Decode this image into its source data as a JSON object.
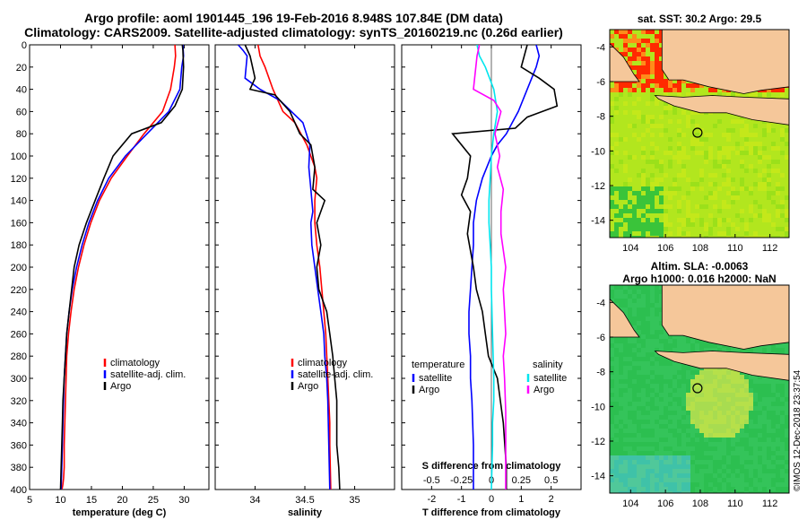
{
  "title": {
    "line1": "Argo profile: aoml 1901445_196 19-Feb-2016 8.948S 107.84E (DM data)",
    "line2": "Climatology: CARS2009. Satellite-adjusted climatology: synTS_20160219.nc (0.26d earlier)"
  },
  "colors": {
    "climatology": "#ff0000",
    "satellite": "#0000ff",
    "argo": "#000000",
    "sat_salinity": "#00e5ee",
    "clim_salinity": "#ff00ff",
    "land": "#f5c79a"
  },
  "chart_data": [
    {
      "type": "line",
      "id": "temperature",
      "xlabel": "temperature (deg C)",
      "xlim": [
        5,
        34
      ],
      "xticks": [
        5,
        10,
        15,
        20,
        25,
        30
      ],
      "ylim": [
        400,
        0
      ],
      "yticks": [
        0,
        20,
        40,
        60,
        80,
        100,
        120,
        140,
        160,
        180,
        200,
        220,
        240,
        260,
        280,
        300,
        320,
        340,
        360,
        380,
        400
      ],
      "legend": [
        "climatology",
        "satellite-adj. clim.",
        "Argo"
      ],
      "series": [
        {
          "name": "climatology",
          "color": "#ff0000",
          "x": [
            28.5,
            28.6,
            28.4,
            27.8,
            26.5,
            23.5,
            20.8,
            18.2,
            16.3,
            14.9,
            13.8,
            12.9,
            12.2,
            11.7,
            11.3,
            11.0,
            10.9,
            10.8,
            10.7,
            10.6,
            10.6,
            10.5,
            10.4,
            10.3,
            10.2,
            10.1
          ],
          "depth": [
            0,
            10,
            20,
            40,
            60,
            80,
            100,
            120,
            140,
            160,
            180,
            200,
            220,
            240,
            260,
            280,
            300,
            320,
            340,
            360,
            380,
            390,
            395,
            398,
            400,
            402
          ]
        },
        {
          "name": "satellite-adj. clim.",
          "color": "#0000ff",
          "x": [
            29.8,
            29.9,
            29.6,
            29.3,
            27.5,
            24.0,
            20.5,
            17.8,
            16.0,
            14.6,
            13.5,
            12.6,
            11.9,
            11.4,
            11.0,
            10.8,
            10.6,
            10.5,
            10.4,
            10.3,
            10.2,
            10.1
          ],
          "depth": [
            0,
            10,
            20,
            40,
            60,
            80,
            100,
            120,
            140,
            160,
            180,
            200,
            220,
            240,
            260,
            280,
            300,
            320,
            340,
            360,
            380,
            400
          ]
        },
        {
          "name": "Argo",
          "color": "#000000",
          "x": [
            29.7,
            29.8,
            29.9,
            29.7,
            28.5,
            26.3,
            21.5,
            18.5,
            17.0,
            15.6,
            14.2,
            13.0,
            12.2,
            11.8,
            11.4,
            11.0,
            10.8,
            10.6,
            10.4,
            10.3,
            10.2,
            10.1,
            10.0
          ],
          "depth": [
            0,
            5,
            20,
            40,
            55,
            70,
            80,
            100,
            120,
            140,
            160,
            180,
            200,
            220,
            240,
            260,
            280,
            300,
            320,
            340,
            360,
            380,
            400
          ]
        }
      ]
    },
    {
      "type": "line",
      "id": "salinity",
      "xlabel": "salinity",
      "xlim": [
        33.6,
        35.4
      ],
      "xticks": [
        34,
        34.5,
        35
      ],
      "xticklabels": [
        "34",
        "34.5",
        "35"
      ],
      "ylim": [
        400,
        0
      ],
      "legend": [
        "climatology",
        "satellite-adj. clim.",
        "Argo"
      ],
      "series": [
        {
          "name": "climatology",
          "color": "#ff0000",
          "x": [
            34.03,
            34.05,
            34.1,
            34.18,
            34.28,
            34.4,
            34.52,
            34.6,
            34.62,
            34.6,
            34.6,
            34.62,
            34.65,
            34.67,
            34.69,
            34.71,
            34.72,
            34.73,
            34.74,
            34.75,
            34.75,
            34.76
          ],
          "depth": [
            0,
            10,
            20,
            40,
            60,
            70,
            90,
            110,
            120,
            140,
            160,
            180,
            200,
            220,
            240,
            260,
            280,
            300,
            320,
            340,
            360,
            400
          ]
        },
        {
          "name": "satellite-adj. clim.",
          "color": "#0000ff",
          "x": [
            33.83,
            33.88,
            33.92,
            33.9,
            34.05,
            34.25,
            34.48,
            34.55,
            34.54,
            34.56,
            34.58,
            34.56,
            34.57,
            34.6,
            34.63,
            34.66,
            34.69,
            34.7,
            34.72,
            34.73,
            34.74,
            34.75
          ],
          "depth": [
            0,
            5,
            10,
            30,
            40,
            50,
            70,
            90,
            110,
            130,
            150,
            160,
            180,
            200,
            220,
            240,
            260,
            280,
            300,
            320,
            360,
            400
          ]
        },
        {
          "name": "Argo",
          "color": "#000000",
          "x": [
            33.9,
            33.95,
            34.0,
            33.95,
            34.2,
            34.35,
            34.45,
            34.56,
            34.6,
            34.58,
            34.7,
            34.62,
            34.66,
            34.62,
            34.64,
            34.72,
            34.75,
            34.78,
            34.8,
            34.82,
            34.82,
            34.84,
            34.85
          ],
          "depth": [
            0,
            10,
            30,
            40,
            45,
            60,
            80,
            90,
            110,
            130,
            140,
            160,
            180,
            200,
            220,
            240,
            260,
            280,
            300,
            320,
            360,
            380,
            400
          ]
        }
      ]
    },
    {
      "type": "line",
      "id": "difference",
      "xlabel": "T difference from climatology",
      "x2label": "S difference from climatology",
      "xlim": [
        -3,
        3
      ],
      "xticks": [
        -2,
        -1,
        0,
        1,
        2
      ],
      "x2ticks": [
        -0.5,
        -0.25,
        0,
        0.25,
        0.5
      ],
      "x2ticklabels": [
        "-0.5",
        "-0.25",
        "0",
        "0.25",
        "0.5"
      ],
      "ylim": [
        400,
        0
      ],
      "legend_left_title": "temperature",
      "legend_right_title": "salinity",
      "legend_left": [
        "satellite",
        "Argo"
      ],
      "legend_right": [
        "satellite",
        "Argo"
      ],
      "series": [
        {
          "name": "T satellite",
          "color": "#0000ff",
          "x": [
            1.5,
            1.6,
            1.5,
            1.2,
            0.9,
            0.7,
            0.5,
            0.2,
            0.0,
            -0.3,
            -0.5,
            -0.6,
            -0.6,
            -0.65,
            -0.7,
            -0.75,
            -0.75,
            -0.7,
            -0.7,
            -0.65,
            -0.6,
            -0.6
          ],
          "depth": [
            0,
            10,
            20,
            40,
            60,
            70,
            80,
            90,
            100,
            120,
            140,
            160,
            180,
            200,
            220,
            240,
            260,
            280,
            300,
            320,
            360,
            400
          ]
        },
        {
          "name": "T Argo",
          "color": "#000000",
          "x": [
            1.2,
            1.0,
            1.6,
            2.1,
            2.2,
            1.2,
            0.8,
            -1.3,
            -0.7,
            -0.8,
            -1.0,
            -0.7,
            -0.8,
            -0.6,
            -0.5,
            -0.3,
            -0.2,
            -0.1,
            0.2,
            0.3,
            0.4,
            0.5,
            0.5
          ],
          "depth": [
            0,
            20,
            30,
            40,
            55,
            65,
            75,
            80,
            100,
            120,
            135,
            150,
            170,
            200,
            220,
            240,
            260,
            280,
            300,
            320,
            340,
            380,
            400
          ]
        },
        {
          "name": "S satellite",
          "color": "#00e5ee",
          "x": [
            -0.12,
            -0.1,
            -0.05,
            0.02,
            0.05,
            0.02,
            0.0,
            -0.01,
            -0.02,
            -0.02,
            -0.01,
            -0.0,
            0.0,
            0.01,
            0.02,
            0.02,
            0.01,
            0.01,
            0.0
          ],
          "depth": [
            0,
            10,
            20,
            40,
            60,
            80,
            100,
            120,
            140,
            160,
            180,
            200,
            220,
            260,
            300,
            320,
            340,
            360,
            400
          ]
        },
        {
          "name": "S Argo",
          "color": "#ff00ff",
          "x": [
            -0.1,
            -0.12,
            -0.15,
            0.02,
            0.08,
            0.03,
            0.07,
            0.05,
            0.1,
            0.08,
            0.08,
            0.12,
            0.1,
            0.11,
            0.12,
            0.1,
            0.11,
            0.12,
            0.12
          ],
          "depth": [
            0,
            10,
            40,
            50,
            60,
            80,
            100,
            110,
            130,
            150,
            170,
            200,
            220,
            240,
            260,
            280,
            300,
            330,
            400
          ]
        }
      ]
    },
    {
      "type": "heatmap",
      "id": "sst_map",
      "title": "sat. SST: 30.2 Argo: 29.5",
      "xticks": [
        104,
        106,
        108,
        110,
        112
      ],
      "yticks": [
        -4,
        -6,
        -8,
        -10,
        -12,
        -14
      ],
      "xlim": [
        102.8,
        113.1
      ],
      "ylim": [
        -15.0,
        -3.0
      ],
      "argo_position": [
        107.84,
        -8.948
      ]
    },
    {
      "type": "heatmap",
      "id": "sla_map",
      "title": "Altim. SLA: -0.0063",
      "subtitle": "Argo h1000: 0.016 h2000: NaN",
      "xticks": [
        104,
        106,
        108,
        110,
        112
      ],
      "yticks": [
        -4,
        -6,
        -8,
        -10,
        -12,
        -14
      ],
      "xlim": [
        102.8,
        113.1
      ],
      "ylim": [
        -15.0,
        -3.0
      ],
      "argo_position": [
        107.84,
        -8.948
      ]
    }
  ],
  "footer": "©IMOS 12-Dec-2018 23:37:54"
}
